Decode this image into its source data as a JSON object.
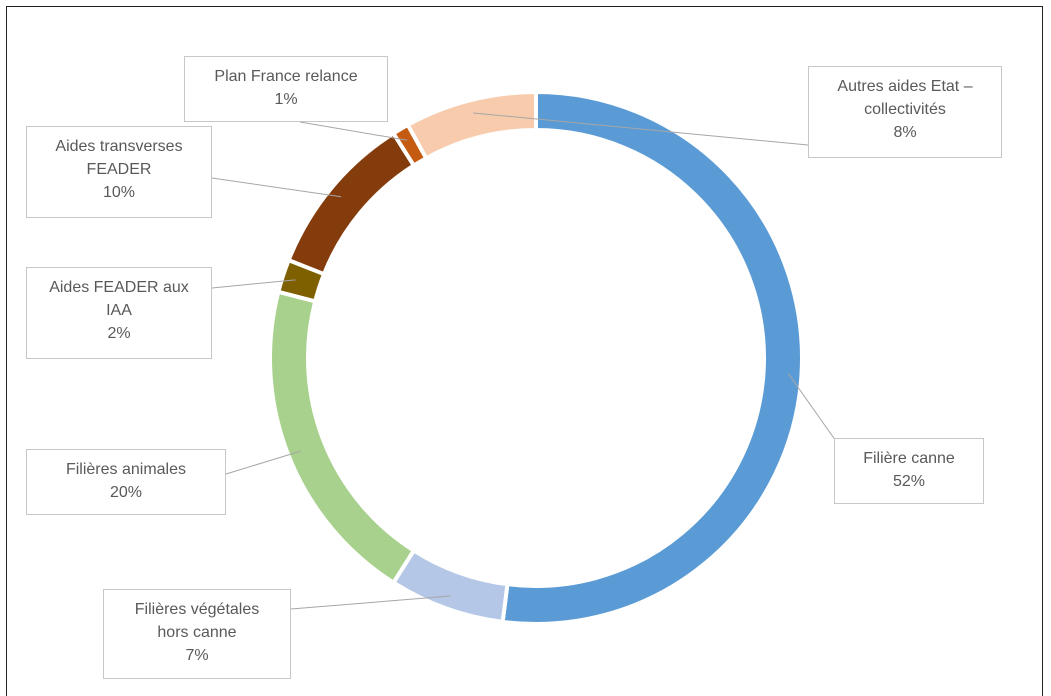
{
  "chart_data": {
    "type": "pie",
    "variant": "donut",
    "slices": [
      {
        "name": "Filière canne",
        "value": 52,
        "label": [
          "Filière canne",
          "52%"
        ],
        "color": "#5b9bd5"
      },
      {
        "name": "Filières végétales hors canne",
        "value": 7,
        "label": [
          "Filières végétales",
          "hors canne",
          "7%"
        ],
        "color": "#b4c7e7"
      },
      {
        "name": "Filières animales",
        "value": 20,
        "label": [
          "Filières animales",
          "20%"
        ],
        "color": "#a9d18e"
      },
      {
        "name": "Aides FEADER aux IAA",
        "value": 2,
        "label": [
          "Aides FEADER aux",
          "IAA",
          "2%"
        ],
        "color": "#7f6000"
      },
      {
        "name": "Aides transverses FEADER",
        "value": 10,
        "label": [
          "Aides transverses",
          "FEADER",
          "10%"
        ],
        "color": "#843c0c"
      },
      {
        "name": "Plan France relance",
        "value": 1,
        "label": [
          "Plan France relance",
          "1%"
        ],
        "color": "#c55a11"
      },
      {
        "name": "Autres aides Etat – collectivités",
        "value": 8,
        "label": [
          "Autres aides Etat –",
          "collectivités",
          "8%"
        ],
        "color": "#f8cbad"
      }
    ],
    "legend": "none",
    "title": ""
  }
}
